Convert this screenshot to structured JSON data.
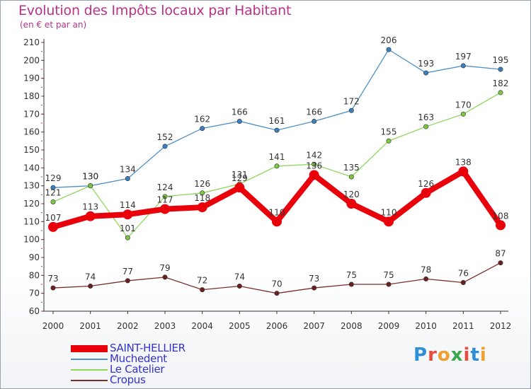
{
  "title": "Evolution des Impôts locaux par Habitant",
  "subtitle": "(en € et par an)",
  "logo": {
    "text": "Proxiti",
    "letters": [
      "P",
      "r",
      "o",
      "x",
      "i",
      "t",
      "i"
    ],
    "colors": [
      "#2e8fd6",
      "#e84c3d",
      "#f0a030",
      "#3aa84a",
      "#e84c3d",
      "#2e8fd6",
      "#f0a030"
    ]
  },
  "chart_data": {
    "type": "line",
    "title": "Evolution des Impôts locaux par Habitant",
    "subtitle": "(en € et par an)",
    "xlabel": "",
    "ylabel": "",
    "x": [
      "2000",
      "2001",
      "2002",
      "2003",
      "2004",
      "2005",
      "2006",
      "2007",
      "2008",
      "2009",
      "2010",
      "2011",
      "2012"
    ],
    "ylim": [
      60,
      210
    ],
    "yticks": [
      60,
      70,
      80,
      90,
      100,
      110,
      120,
      130,
      140,
      150,
      160,
      170,
      180,
      190,
      200,
      210
    ],
    "grid": false,
    "legend_position": "bottom-left",
    "series": [
      {
        "name": "SAINT-HELLIER",
        "values": [
          107,
          113,
          114,
          117,
          118,
          129,
          110,
          136,
          120,
          110,
          126,
          138,
          108
        ],
        "labels": [
          "107",
          "113",
          "114",
          "117",
          "118",
          "129",
          "110",
          "136",
          "120",
          "110",
          "126",
          "138",
          "108"
        ],
        "color": "#e8000b",
        "legend_color": "#3333cc",
        "emphasis": true
      },
      {
        "name": "Muchedent",
        "values": [
          129,
          130,
          134,
          152,
          162,
          166,
          161,
          166,
          172,
          206,
          193,
          197,
          195
        ],
        "labels": [
          "129",
          "130",
          "134",
          "152",
          "162",
          "166",
          "161",
          "166",
          "172",
          "206",
          "193",
          "197",
          "195"
        ],
        "color": "#4f90c8",
        "marker_color": "#3a7fc0",
        "legend_color": "#3333cc"
      },
      {
        "name": "Le Catelier",
        "values": [
          121,
          130,
          101,
          124,
          126,
          131,
          141,
          142,
          135,
          155,
          163,
          170,
          182
        ],
        "labels": [
          "121",
          "130",
          "101",
          "124",
          "126",
          "131",
          "141",
          "142",
          "135",
          "155",
          "163",
          "170",
          "182"
        ],
        "color": "#8fd65c",
        "marker_color": "#7cc742",
        "legend_color": "#3333cc"
      },
      {
        "name": "Cropus",
        "values": [
          73,
          74,
          77,
          79,
          72,
          74,
          70,
          73,
          75,
          75,
          78,
          76,
          87
        ],
        "labels": [
          "73",
          "74",
          "77",
          "79",
          "72",
          "74",
          "70",
          "73",
          "75",
          "75",
          "78",
          "76",
          "87"
        ],
        "color": "#7a2e2e",
        "marker_color": "#6b1f1f",
        "legend_color": "#3333cc"
      }
    ]
  }
}
